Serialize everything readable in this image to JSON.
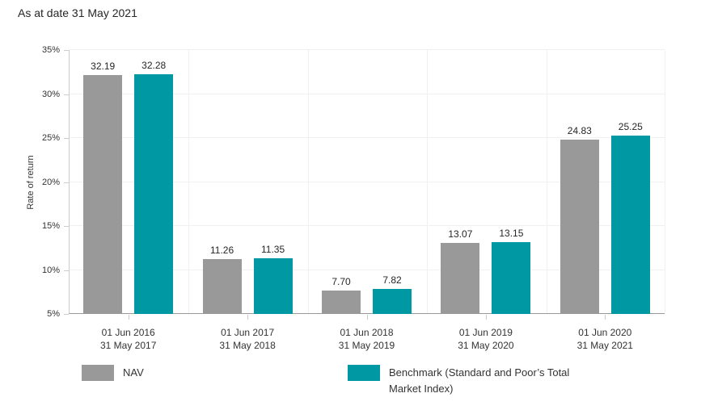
{
  "chart_data": {
    "type": "bar",
    "title": "As at date 31 May 2021",
    "xlabel": "",
    "ylabel": "Rate of return",
    "ylim": [
      5,
      35
    ],
    "ytick_step": 5,
    "ytick_suffix": "%",
    "grid": true,
    "legend_position": "bottom",
    "value_label_decimals": 2,
    "categories": [
      [
        "01 Jun 2016",
        "31 May 2017"
      ],
      [
        "01 Jun 2017",
        "31 May 2018"
      ],
      [
        "01 Jun 2018",
        "31 May 2019"
      ],
      [
        "01 Jun 2019",
        "31 May 2020"
      ],
      [
        "01 Jun 2020",
        "31 May 2021"
      ]
    ],
    "series": [
      {
        "name": "NAV",
        "color": "#999999",
        "values": [
          32.19,
          11.26,
          7.7,
          13.07,
          24.83
        ]
      },
      {
        "name": "Benchmark (Standard and Poor’s Total Market Index)",
        "color": "#0099a3",
        "values": [
          32.28,
          11.35,
          7.82,
          13.15,
          25.25
        ]
      }
    ]
  },
  "colors": {
    "x_axis_line": "#999999",
    "y_axis_line": "#cccccc",
    "gridline": "#f0f0f0",
    "tick": "#cccccc",
    "axis_text": "#333333",
    "title_text": "#262626"
  }
}
